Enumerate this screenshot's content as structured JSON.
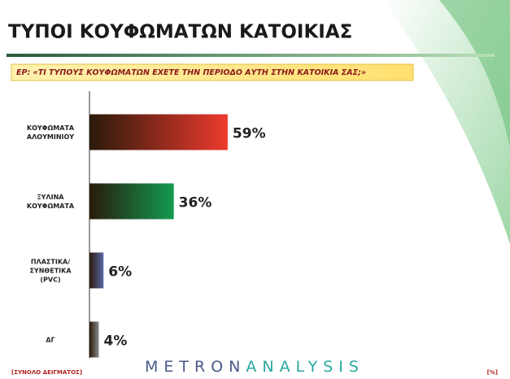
{
  "chart_data": {
    "type": "bar",
    "orientation": "horizontal",
    "title": "ΤΥΠΟΙ ΚΟΥΦΩΜΑΤΩΝ ΚΑΤΟΙΚΙΑΣ",
    "subtitle": "ΕΡ: «ΤΙ ΤΥΠΟΥΣ ΚΟΥΦΩΜΑΤΩΝ ΕΧΕΤΕ ΤΗΝ ΠΕΡΙΟΔΟ ΑΥΤΗ ΣΤΗΝ ΚΑΤΟΙΚΙΑ ΣΑΣ;»",
    "categories": [
      "ΚΟΥΦΩΜΑΤΑ ΑΛΟΥΜΙΝΙΟΥ",
      "ΞΥΛΙΝΑ ΚΟΥΦΩΜΑΤΑ",
      "ΠΛΑΣΤΙΚΑ/ ΣΥΝΘΕΤΙΚΑ (PVC)",
      "ΔΓ"
    ],
    "values": [
      59,
      36,
      6,
      4
    ],
    "value_labels": [
      "59%",
      "36%",
      "6%",
      "4%"
    ],
    "colors": [
      "#ee3a2e",
      "#139a50",
      "#5a68a8",
      "#8a8a8a"
    ],
    "footer_left": "[ΣΥΝΟΛΟ ΔΕΙΓΜΑΤΟΣ]",
    "footer_right": "[%]",
    "logo": [
      "METRON",
      "ANALYSIS"
    ]
  }
}
